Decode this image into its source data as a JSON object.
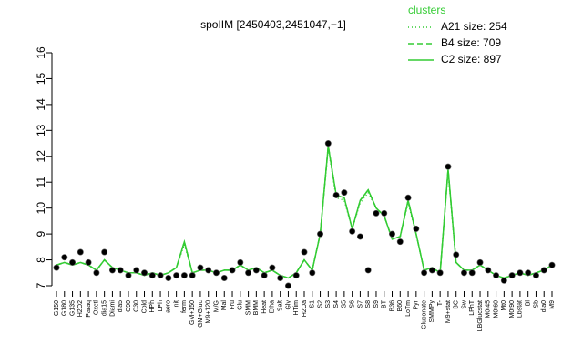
{
  "chart_data": {
    "type": "line",
    "title": "spoIIM [2450403,2451047,−1]",
    "legend_title": "clusters",
    "legend": "top-right",
    "categories": [
      "G150",
      "G180",
      "G135",
      "H2O2",
      "Paraq",
      "Oxctl",
      "dia15",
      "Diami",
      "dia5",
      "C90",
      "C30",
      "Cold",
      "HPh",
      "LPh",
      "aero",
      "nit",
      "ferm",
      "GM+150",
      "GM+Gluc",
      "M9+120",
      "M/G",
      "Mal",
      "Fru",
      "Glu",
      "SMM",
      "BMM",
      "Heat",
      "Etha",
      "Salt",
      "Gly",
      "HTim",
      "H2Oa",
      "S1",
      "S2",
      "S3",
      "S4",
      "S5",
      "S6",
      "S7",
      "S8",
      "S9",
      "BT",
      "B36",
      "B60",
      "LoTm",
      "Pyr",
      "Gluconate",
      "SMMPy",
      "T-",
      "M9+stat",
      "BC",
      "Sw",
      "LPhT",
      "LBGlucstat",
      "M0t45",
      "M0t60",
      "Mt0",
      "M0t90",
      "Lbstat",
      "Bl",
      "Sb",
      "dia0",
      "M9"
    ],
    "series": [
      {
        "name": "A21 size: 254",
        "color": "#33cc33",
        "dash": "1,3",
        "values": [
          7.8,
          7.9,
          7.8,
          7.9,
          7.8,
          7.6,
          8.0,
          7.7,
          7.6,
          7.5,
          7.5,
          7.4,
          7.5,
          7.4,
          7.5,
          7.7,
          8.6,
          7.5,
          7.6,
          7.6,
          7.5,
          7.6,
          7.6,
          7.8,
          7.6,
          7.7,
          7.5,
          7.6,
          7.4,
          7.3,
          7.5,
          8.0,
          7.6,
          9.0,
          12.3,
          10.4,
          10.3,
          9.2,
          10.2,
          10.6,
          10.0,
          9.7,
          8.8,
          8.9,
          10.2,
          9.0,
          7.6,
          7.7,
          7.5,
          11.4,
          7.9,
          7.6,
          7.6,
          7.8,
          7.6,
          7.4,
          7.3,
          7.4,
          7.5,
          7.4,
          7.5,
          7.6,
          7.8
        ]
      },
      {
        "name": "B4 size: 709",
        "color": "#33cc33",
        "dash": "6,4",
        "values": [
          7.8,
          7.9,
          7.8,
          7.9,
          7.8,
          7.6,
          8.0,
          7.7,
          7.6,
          7.5,
          7.5,
          7.4,
          7.5,
          7.4,
          7.5,
          7.7,
          8.7,
          7.5,
          7.6,
          7.6,
          7.5,
          7.6,
          7.6,
          7.8,
          7.6,
          7.7,
          7.5,
          7.6,
          7.4,
          7.3,
          7.5,
          8.0,
          7.6,
          9.0,
          12.4,
          10.5,
          10.4,
          9.2,
          10.3,
          10.7,
          10.0,
          9.7,
          8.8,
          8.9,
          10.3,
          9.0,
          7.6,
          7.7,
          7.5,
          11.5,
          7.9,
          7.6,
          7.6,
          7.8,
          7.6,
          7.4,
          7.3,
          7.4,
          7.5,
          7.4,
          7.5,
          7.6,
          7.8
        ]
      },
      {
        "name": "C2 size: 897",
        "color": "#33cc33",
        "dash": "",
        "values": [
          7.8,
          7.9,
          7.8,
          7.9,
          7.8,
          7.6,
          8.0,
          7.7,
          7.6,
          7.5,
          7.5,
          7.4,
          7.5,
          7.4,
          7.5,
          7.7,
          8.7,
          7.5,
          7.6,
          7.6,
          7.5,
          7.6,
          7.6,
          7.8,
          7.6,
          7.7,
          7.5,
          7.6,
          7.4,
          7.3,
          7.5,
          8.0,
          7.6,
          9.0,
          12.4,
          10.5,
          10.4,
          9.2,
          10.3,
          10.7,
          10.0,
          9.7,
          8.8,
          8.9,
          10.3,
          9.0,
          7.6,
          7.7,
          7.5,
          11.5,
          7.9,
          7.6,
          7.6,
          7.8,
          7.6,
          7.4,
          7.3,
          7.4,
          7.5,
          7.4,
          7.5,
          7.6,
          7.8
        ]
      }
    ],
    "points": [
      7.7,
      8.1,
      7.9,
      8.3,
      7.9,
      7.5,
      8.3,
      7.6,
      7.6,
      7.4,
      7.6,
      7.5,
      7.4,
      7.4,
      7.3,
      7.4,
      7.4,
      7.4,
      7.7,
      7.6,
      7.5,
      7.3,
      7.6,
      7.9,
      7.5,
      7.6,
      7.4,
      7.7,
      7.3,
      7.0,
      7.4,
      8.3,
      7.5,
      9.0,
      12.5,
      10.5,
      10.6,
      9.1,
      8.9,
      7.6,
      9.8,
      9.8,
      9.0,
      8.7,
      10.4,
      9.2,
      7.5,
      7.6,
      7.5,
      11.6,
      8.2,
      7.5,
      7.5,
      7.9,
      7.6,
      7.4,
      7.2,
      7.4,
      7.5,
      7.5,
      7.4,
      7.6,
      7.8
    ],
    "point_color": "#000000",
    "ylim": [
      7,
      16
    ],
    "yticks": [
      7,
      8,
      9,
      10,
      11,
      12,
      13,
      14,
      15,
      16
    ]
  }
}
